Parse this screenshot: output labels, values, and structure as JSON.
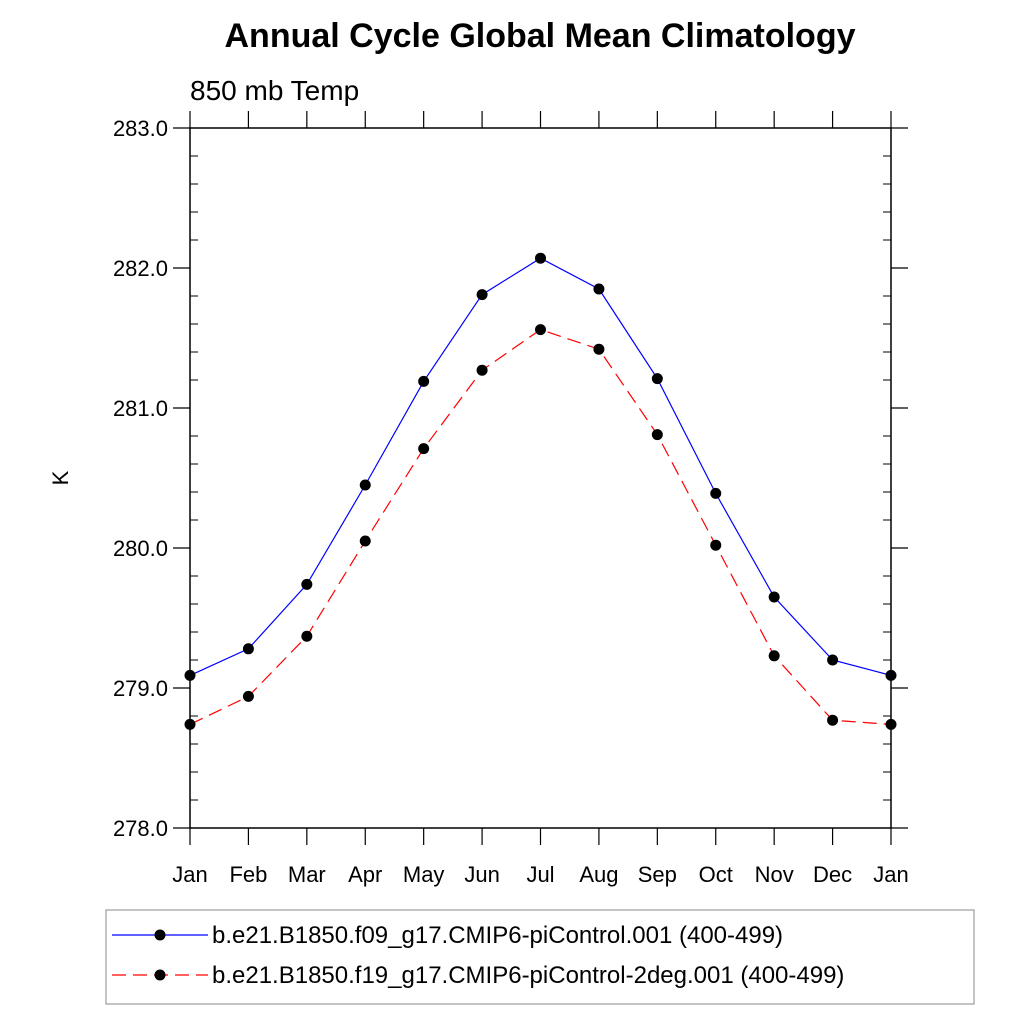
{
  "chart_data": {
    "type": "line",
    "title": "Annual Cycle Global Mean Climatology",
    "subtitle": "850 mb Temp",
    "xlabel": "",
    "ylabel": "K",
    "categories": [
      "Jan",
      "Feb",
      "Mar",
      "Apr",
      "May",
      "Jun",
      "Jul",
      "Aug",
      "Sep",
      "Oct",
      "Nov",
      "Dec",
      "Jan"
    ],
    "ylim": [
      278.0,
      283.0
    ],
    "yticks": [
      278.0,
      279.0,
      280.0,
      281.0,
      282.0,
      283.0
    ],
    "ytick_labels": [
      "278.0",
      "279.0",
      "280.0",
      "281.0",
      "282.0",
      "283.0"
    ],
    "minor_ytick_step": 0.2,
    "grid": false,
    "legend_position": "bottom",
    "series": [
      {
        "name": "b.e21.B1850.f09_g17.CMIP6-piControl.001 (400-499)",
        "color": "#0000ff",
        "dash": "solid",
        "values": [
          279.09,
          279.28,
          279.74,
          280.45,
          281.19,
          281.81,
          282.07,
          281.85,
          281.21,
          280.39,
          279.65,
          279.2,
          279.09
        ]
      },
      {
        "name": "b.e21.B1850.f19_g17.CMIP6-piControl-2deg.001 (400-499)",
        "color": "#ff0000",
        "dash": "dashed",
        "values": [
          278.74,
          278.94,
          279.37,
          280.05,
          280.71,
          281.27,
          281.56,
          281.42,
          280.81,
          280.02,
          279.23,
          278.77,
          278.74
        ]
      }
    ]
  }
}
